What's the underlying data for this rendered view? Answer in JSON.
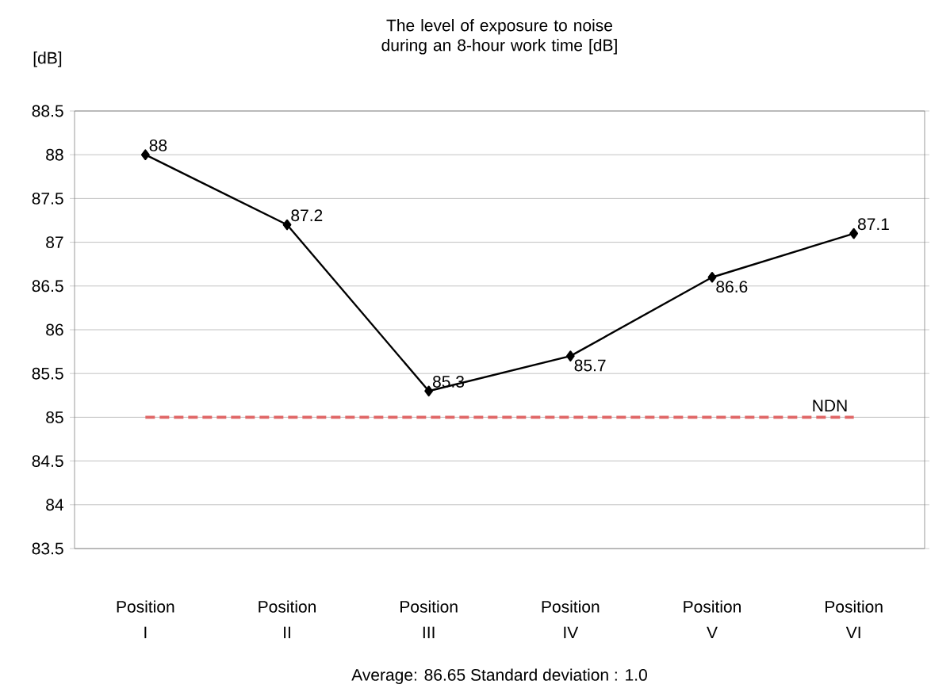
{
  "chart_data": {
    "type": "line",
    "title": "The level of exposure to noise during an 8-hour work time [dB]",
    "ylabel": "[dB]",
    "categories": [
      "Position I",
      "Position II",
      "Position III",
      "Position IV",
      "Position V",
      "Position VI"
    ],
    "values": [
      88,
      87.2,
      85.3,
      85.7,
      86.6,
      87.1
    ],
    "color": "#000000",
    "marker": "diamond",
    "line_style": "solid",
    "data_labels": true,
    "ylim": [
      83.5,
      88.5
    ],
    "yticks": [
      83.5,
      84,
      84.5,
      85,
      85.5,
      86,
      86.5,
      87,
      87.5,
      88,
      88.5
    ],
    "grid": "y",
    "ref_lines": [
      {
        "axis": "y",
        "value": 85,
        "label": "NDN",
        "color": "#e06666",
        "line_style": "dashed"
      }
    ],
    "annotations": [
      "Average: 86.65   Standard deviation : 1.0"
    ]
  }
}
